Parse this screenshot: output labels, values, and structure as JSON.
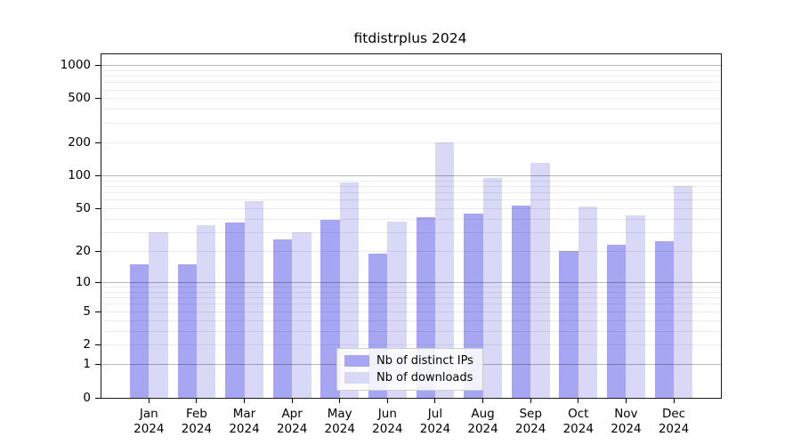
{
  "chart_data": {
    "type": "bar",
    "title": "fitdistrplus 2024",
    "categories": [
      "Jan",
      "Feb",
      "Mar",
      "Apr",
      "May",
      "Jun",
      "Jul",
      "Aug",
      "Sep",
      "Oct",
      "Nov",
      "Dec"
    ],
    "category_year": "2024",
    "series": [
      {
        "name": "Nb of distinct IPs",
        "color": "#a6a6f2",
        "values": [
          15,
          15,
          37,
          26,
          39,
          19,
          42,
          45,
          53,
          20,
          23,
          25
        ]
      },
      {
        "name": "Nb of downloads",
        "color": "#d9d9f7",
        "values": [
          30,
          35,
          58,
          30,
          86,
          38,
          200,
          96,
          130,
          52,
          43,
          80
        ]
      }
    ],
    "yscale": "log1p",
    "ylim": [
      0,
      1250
    ],
    "y_tick_labels": [
      "0",
      "1",
      "2",
      "5",
      "10",
      "20",
      "50",
      "100",
      "200",
      "500",
      "1000"
    ],
    "y_tick_values": [
      0,
      1,
      2,
      5,
      10,
      20,
      50,
      100,
      200,
      500,
      1000
    ],
    "y_major_gridlines": [
      1,
      10,
      100,
      1000
    ],
    "y_minor_gridlines": [
      2,
      3,
      4,
      5,
      6,
      7,
      8,
      9,
      20,
      30,
      40,
      50,
      60,
      70,
      80,
      90,
      200,
      300,
      400,
      500,
      600,
      700,
      800,
      900
    ],
    "grid": true,
    "legend_position": "lower center inside",
    "axis_color": "#1a1a1a",
    "text_color": "#000000"
  }
}
